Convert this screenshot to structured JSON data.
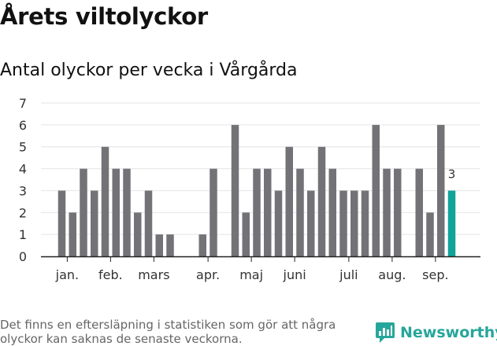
{
  "header": {
    "title": "Årets viltolyckor",
    "subtitle": "Antal olyckor per vecka i Vårgårda"
  },
  "footer": {
    "note": "Det finns en eftersläpning i statistiken som gör att några olyckor kan saknas de senaste veckorna.",
    "brand": "Newsworthy"
  },
  "colors": {
    "bar": "#737277",
    "highlight": "#0fa39a",
    "grid": "#e4e4e4",
    "axis": "#222222",
    "brand": "#26a69a"
  },
  "icons": {
    "logo": "newsworthy-logo-icon"
  },
  "chart_data": {
    "type": "bar",
    "ylim": [
      0,
      7
    ],
    "yticks": [
      0,
      1,
      2,
      3,
      4,
      5,
      6,
      7
    ],
    "grid": true,
    "values": [
      3,
      2,
      4,
      3,
      5,
      4,
      4,
      2,
      3,
      1,
      1,
      0,
      0,
      1,
      4,
      0,
      6,
      2,
      4,
      4,
      3,
      5,
      4,
      3,
      5,
      4,
      3,
      3,
      3,
      6,
      4,
      4,
      0,
      4,
      2,
      6,
      3
    ],
    "highlight_index": 36,
    "highlight_label": "3",
    "month_labels": [
      {
        "label": "jan.",
        "bar": 0.5
      },
      {
        "label": "feb.",
        "bar": 4.5
      },
      {
        "label": "mars",
        "bar": 8.5
      },
      {
        "label": "apr.",
        "bar": 13.5
      },
      {
        "label": "maj",
        "bar": 17.5
      },
      {
        "label": "juni",
        "bar": 21.5
      },
      {
        "label": "juli",
        "bar": 26.5
      },
      {
        "label": "aug.",
        "bar": 30.5
      },
      {
        "label": "sep.",
        "bar": 34.5
      }
    ]
  }
}
